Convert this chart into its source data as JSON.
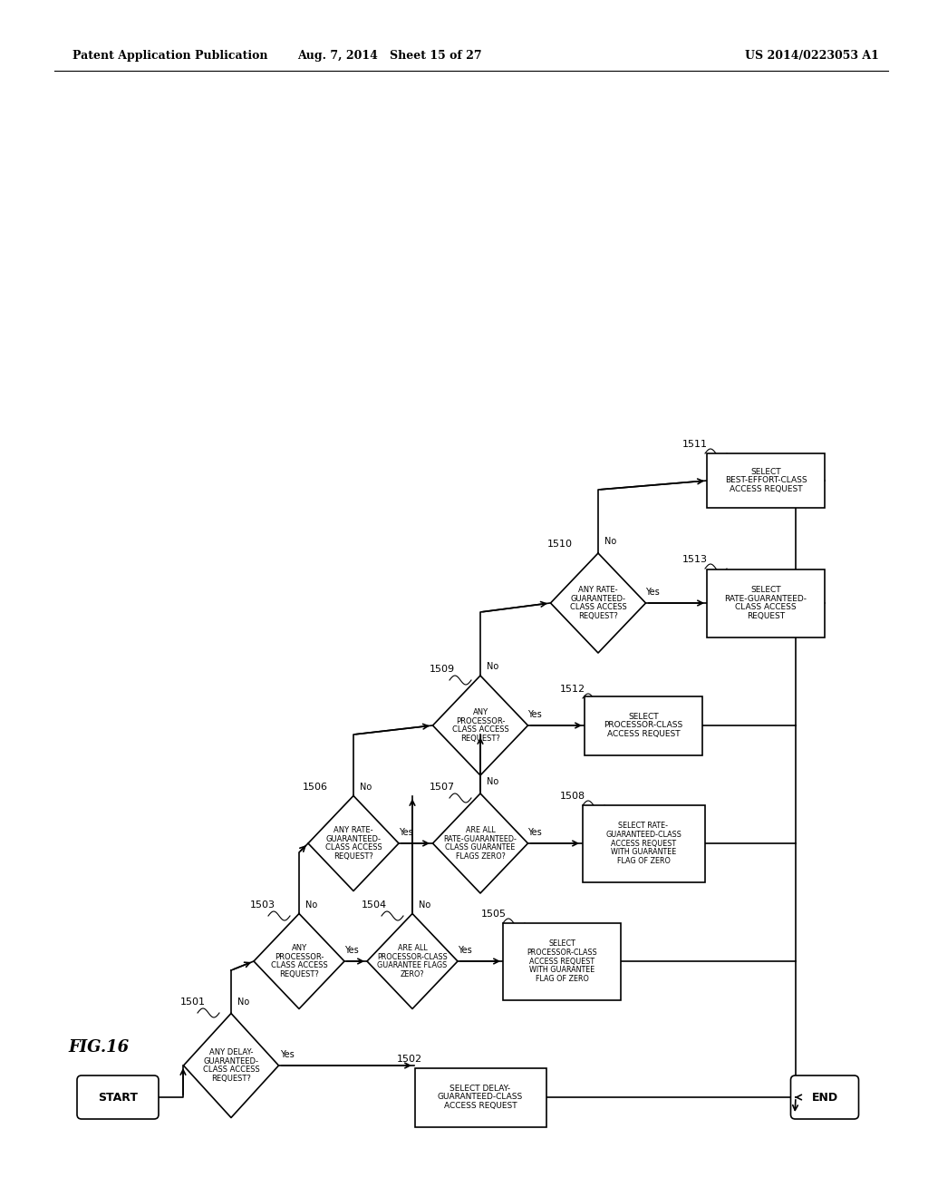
{
  "title_left": "Patent Application Publication",
  "title_center": "Aug. 7, 2014   Sheet 15 of 27",
  "title_right": "US 2014/0223053 A1",
  "fig_label": "FIG.16",
  "background_color": "#ffffff"
}
